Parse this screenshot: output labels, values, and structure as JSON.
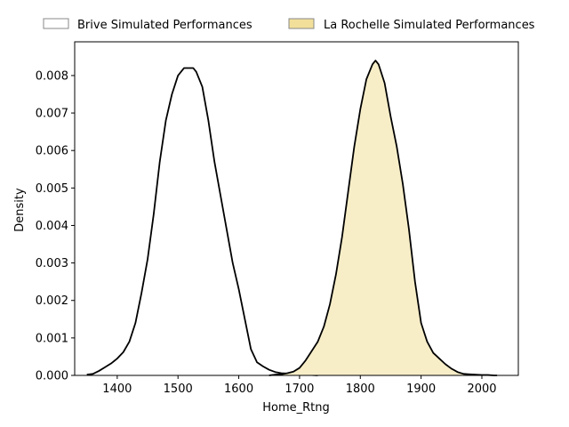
{
  "chart_data": {
    "type": "area",
    "title": "",
    "xlabel": "Home_Rtng",
    "ylabel": "Density",
    "xlim": [
      1330,
      2060
    ],
    "ylim": [
      0,
      0.0089
    ],
    "xticks": [
      1400,
      1500,
      1600,
      1700,
      1800,
      1900,
      2000
    ],
    "yticks": [
      0.0,
      0.001,
      0.002,
      0.003,
      0.004,
      0.005,
      0.006,
      0.007,
      0.008
    ],
    "ytick_labels": [
      "0.000",
      "0.001",
      "0.002",
      "0.003",
      "0.004",
      "0.005",
      "0.006",
      "0.007",
      "0.008"
    ],
    "grid": false,
    "legend_position": "top, above plot, 2 columns",
    "series": [
      {
        "name": "Brive Simulated Performances",
        "fill": "none",
        "line_color": "#000000",
        "x": [
          1350,
          1360,
          1370,
          1380,
          1390,
          1400,
          1410,
          1420,
          1430,
          1440,
          1450,
          1460,
          1470,
          1480,
          1490,
          1500,
          1510,
          1520,
          1525,
          1530,
          1540,
          1550,
          1560,
          1570,
          1580,
          1590,
          1600,
          1610,
          1620,
          1630,
          1640,
          1650,
          1660,
          1670,
          1680,
          1690,
          1700,
          1710,
          1720,
          1730
        ],
        "y": [
          2e-05,
          4e-05,
          0.00012,
          0.00022,
          0.00032,
          0.00045,
          0.00062,
          0.0009,
          0.0014,
          0.0022,
          0.0031,
          0.0043,
          0.0057,
          0.0068,
          0.0075,
          0.008,
          0.0082,
          0.0082,
          0.0082,
          0.0081,
          0.0077,
          0.0068,
          0.0057,
          0.0048,
          0.0039,
          0.003,
          0.0023,
          0.0015,
          0.0007,
          0.00035,
          0.00024,
          0.00015,
          9e-05,
          6e-05,
          5e-05,
          4e-05,
          3e-05,
          2e-05,
          1e-05,
          0.0
        ]
      },
      {
        "name": "La Rochelle Simulated Performances",
        "fill": "#f7eec8",
        "line_color": "#000000",
        "x": [
          1650,
          1660,
          1670,
          1680,
          1690,
          1700,
          1710,
          1720,
          1730,
          1740,
          1750,
          1760,
          1770,
          1780,
          1790,
          1800,
          1810,
          1820,
          1825,
          1830,
          1840,
          1850,
          1860,
          1870,
          1880,
          1890,
          1900,
          1910,
          1920,
          1930,
          1940,
          1950,
          1960,
          1970,
          1980,
          1990,
          2000,
          2010,
          2020,
          2025
        ],
        "y": [
          0.0,
          2e-05,
          3e-05,
          6e-05,
          0.0001,
          0.0002,
          0.0004,
          0.00065,
          0.0009,
          0.0013,
          0.0019,
          0.0027,
          0.0037,
          0.0049,
          0.0061,
          0.0071,
          0.0079,
          0.0083,
          0.0084,
          0.0083,
          0.0078,
          0.0069,
          0.0061,
          0.0051,
          0.0039,
          0.0025,
          0.0014,
          0.0009,
          0.0006,
          0.00045,
          0.0003,
          0.00018,
          9e-05,
          4e-05,
          3e-05,
          2e-05,
          1e-05,
          1e-05,
          0.0,
          0.0
        ]
      }
    ]
  }
}
